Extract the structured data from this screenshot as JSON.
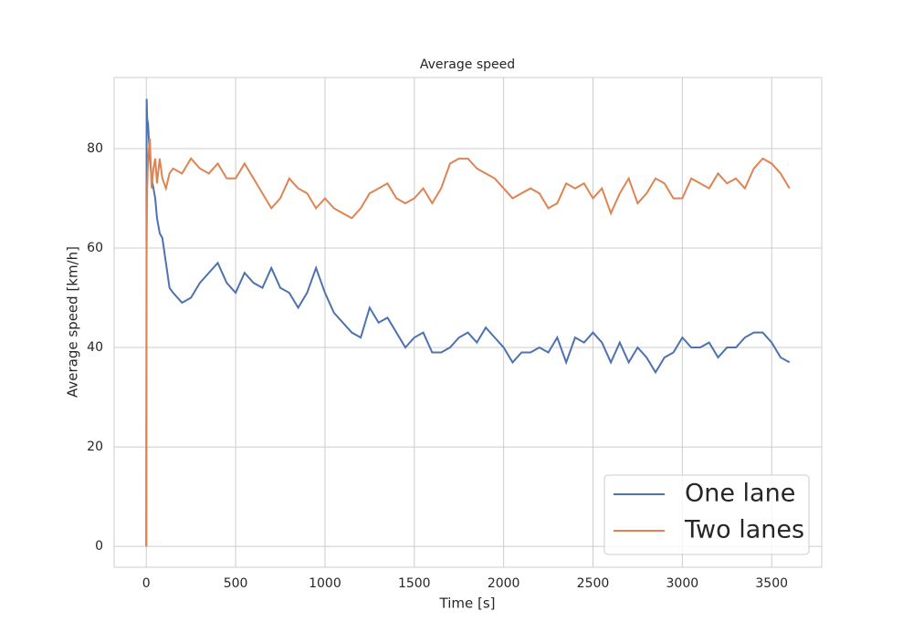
{
  "chart_data": {
    "type": "line",
    "title": "Average speed",
    "xlabel": "Time [s]",
    "ylabel": "Average speed [km/h]",
    "x": [
      0,
      2,
      5,
      10,
      20,
      30,
      40,
      50,
      60,
      75,
      90,
      110,
      130,
      150,
      200,
      250,
      300,
      350,
      400,
      450,
      500,
      550,
      600,
      650,
      700,
      750,
      800,
      850,
      900,
      950,
      1000,
      1050,
      1100,
      1150,
      1200,
      1250,
      1300,
      1350,
      1400,
      1450,
      1500,
      1550,
      1600,
      1650,
      1700,
      1750,
      1800,
      1850,
      1900,
      1950,
      2000,
      2050,
      2100,
      2150,
      2200,
      2250,
      2300,
      2350,
      2400,
      2450,
      2500,
      2550,
      2600,
      2650,
      2700,
      2750,
      2800,
      2850,
      2900,
      2950,
      3000,
      3050,
      3100,
      3150,
      3200,
      3250,
      3300,
      3350,
      3400,
      3450,
      3500,
      3550,
      3600
    ],
    "series": [
      {
        "name": "One lane",
        "color": "#4c72b0",
        "values": [
          0,
          90,
          86,
          85,
          78,
          74,
          72,
          70,
          66,
          63,
          62,
          57,
          52,
          51,
          49,
          50,
          53,
          55,
          57,
          53,
          51,
          55,
          53,
          52,
          56,
          52,
          51,
          48,
          51,
          56,
          51,
          47,
          45,
          43,
          42,
          48,
          45,
          46,
          43,
          40,
          42,
          43,
          39,
          39,
          40,
          42,
          43,
          41,
          44,
          42,
          40,
          37,
          39,
          39,
          40,
          39,
          42,
          37,
          42,
          41,
          43,
          41,
          37,
          41,
          37,
          40,
          38,
          35,
          38,
          39,
          42,
          40,
          40,
          41,
          38,
          40,
          40,
          42,
          43,
          43,
          41,
          38,
          37
        ]
      },
      {
        "name": "Two lanes",
        "color": "#dd8452",
        "values": [
          0,
          60,
          72,
          78,
          82,
          72,
          76,
          78,
          73,
          78,
          74,
          72,
          75,
          76,
          75,
          78,
          76,
          75,
          77,
          74,
          74,
          77,
          74,
          71,
          68,
          70,
          74,
          72,
          71,
          68,
          70,
          68,
          67,
          66,
          68,
          71,
          72,
          73,
          70,
          69,
          70,
          72,
          69,
          72,
          77,
          78,
          78,
          76,
          75,
          74,
          72,
          70,
          71,
          72,
          71,
          68,
          69,
          73,
          72,
          73,
          70,
          72,
          67,
          71,
          74,
          69,
          71,
          74,
          73,
          70,
          70,
          74,
          73,
          72,
          75,
          73,
          74,
          72,
          76,
          78,
          77,
          75,
          72
        ]
      }
    ],
    "xlim": [
      -180,
      3780
    ],
    "ylim": [
      -4.2,
      94.3
    ],
    "xticks": [
      0,
      500,
      1000,
      1500,
      2000,
      2500,
      3000,
      3500
    ],
    "yticks": [
      0,
      20,
      40,
      60,
      80
    ],
    "grid": true,
    "legend": "lower right"
  }
}
